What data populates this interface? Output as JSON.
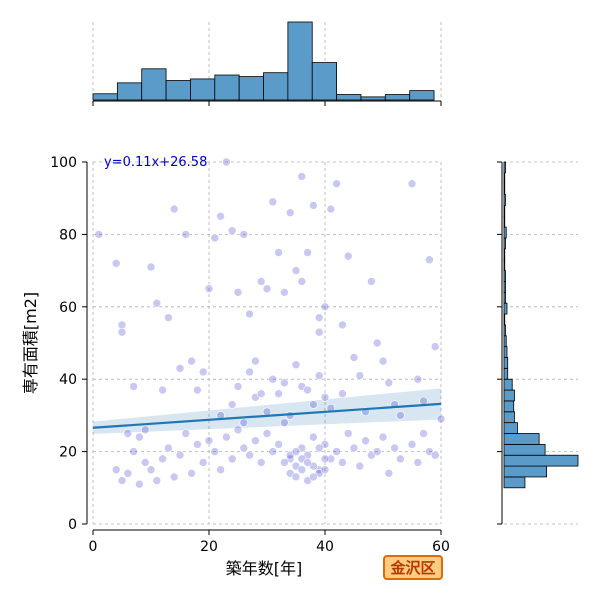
{
  "chart_data": {
    "type": "scatter",
    "xlabel": "築年数[年]",
    "ylabel": "専有面積[m2]",
    "xlim": [
      0,
      60
    ],
    "ylim": [
      0,
      100
    ],
    "xticks": [
      0,
      20,
      40,
      60
    ],
    "yticks": [
      0,
      20,
      40,
      60,
      80,
      100
    ],
    "grid": true,
    "regression": {
      "label": "y=0.11x+26.58",
      "slope": 0.11,
      "intercept": 26.58
    },
    "badge": "金沢区",
    "colors": {
      "points": "#3a3acc",
      "regression": "#1f77b4",
      "histogram": "#5a9bc9",
      "grid": "#b0b0b0",
      "equation": "#0000cc"
    },
    "top_histogram": {
      "bin_edges": [
        0,
        4.2,
        8.4,
        12.6,
        16.8,
        21,
        25.2,
        29.4,
        33.6,
        37.8,
        42,
        46.2,
        50.4,
        54.6,
        58.8
      ],
      "counts": [
        8,
        22,
        40,
        25,
        27,
        32,
        30,
        35,
        100,
        48,
        7,
        4,
        7,
        12
      ]
    },
    "right_histogram": {
      "bin_edges": [
        10,
        13,
        16,
        19,
        22,
        25,
        28,
        31,
        34,
        37,
        40,
        43,
        46,
        49,
        52,
        55,
        58,
        61,
        64,
        67,
        70,
        73,
        76,
        79,
        82,
        85,
        88,
        91,
        94,
        97,
        100
      ],
      "counts": [
        28,
        57,
        99,
        55,
        47,
        18,
        14,
        13,
        14,
        11,
        5,
        5,
        4,
        3,
        2,
        1,
        4,
        2,
        2,
        2,
        1,
        1,
        2,
        3,
        1,
        1,
        2,
        1,
        1,
        2
      ]
    },
    "points": [
      [
        1,
        80
      ],
      [
        4,
        72
      ],
      [
        5,
        55
      ],
      [
        5,
        53
      ],
      [
        6,
        25
      ],
      [
        7,
        38
      ],
      [
        8,
        24
      ],
      [
        9,
        26
      ],
      [
        10,
        71
      ],
      [
        11,
        61
      ],
      [
        12,
        37
      ],
      [
        13,
        57
      ],
      [
        14,
        87
      ],
      [
        15,
        43
      ],
      [
        16,
        80
      ],
      [
        17,
        45
      ],
      [
        18,
        37
      ],
      [
        19,
        42
      ],
      [
        20,
        65
      ],
      [
        21,
        79
      ],
      [
        22,
        85
      ],
      [
        23,
        100
      ],
      [
        24,
        81
      ],
      [
        25,
        64
      ],
      [
        26,
        80
      ],
      [
        27,
        58
      ],
      [
        28,
        45
      ],
      [
        29,
        67
      ],
      [
        30,
        65
      ],
      [
        31,
        89
      ],
      [
        32,
        75
      ],
      [
        33,
        64
      ],
      [
        34,
        86
      ],
      [
        35,
        70
      ],
      [
        36,
        96
      ],
      [
        37,
        75
      ],
      [
        38,
        88
      ],
      [
        39,
        57
      ],
      [
        40,
        60
      ],
      [
        41,
        87
      ],
      [
        42,
        94
      ],
      [
        43,
        55
      ],
      [
        44,
        74
      ],
      [
        45,
        46
      ],
      [
        46,
        41
      ],
      [
        47,
        31
      ],
      [
        48,
        67
      ],
      [
        49,
        50
      ],
      [
        50,
        45
      ],
      [
        51,
        39
      ],
      [
        52,
        33
      ],
      [
        53,
        30
      ],
      [
        55,
        94
      ],
      [
        56,
        40
      ],
      [
        57,
        34
      ],
      [
        58,
        73
      ],
      [
        59,
        49
      ],
      [
        60,
        29
      ],
      [
        36,
        67
      ],
      [
        39,
        53
      ],
      [
        4,
        15
      ],
      [
        5,
        12
      ],
      [
        6,
        14
      ],
      [
        7,
        20
      ],
      [
        8,
        11
      ],
      [
        9,
        17
      ],
      [
        10,
        15
      ],
      [
        11,
        12
      ],
      [
        12,
        18
      ],
      [
        13,
        21
      ],
      [
        14,
        13
      ],
      [
        15,
        19
      ],
      [
        16,
        25
      ],
      [
        17,
        14
      ],
      [
        18,
        22
      ],
      [
        19,
        17
      ],
      [
        20,
        23
      ],
      [
        21,
        20
      ],
      [
        22,
        15
      ],
      [
        23,
        24
      ],
      [
        24,
        18
      ],
      [
        25,
        26
      ],
      [
        26,
        21
      ],
      [
        27,
        19
      ],
      [
        28,
        23
      ],
      [
        29,
        17
      ],
      [
        30,
        25
      ],
      [
        31,
        20
      ],
      [
        32,
        22
      ],
      [
        33,
        28
      ],
      [
        34,
        18
      ],
      [
        35,
        16
      ],
      [
        36,
        21
      ],
      [
        37,
        19
      ],
      [
        38,
        24
      ],
      [
        39,
        15
      ],
      [
        40,
        22
      ],
      [
        41,
        18
      ],
      [
        42,
        20
      ],
      [
        43,
        17
      ],
      [
        44,
        25
      ],
      [
        45,
        21
      ],
      [
        46,
        16
      ],
      [
        47,
        23
      ],
      [
        48,
        19
      ],
      [
        49,
        20
      ],
      [
        50,
        24
      ],
      [
        51,
        14
      ],
      [
        52,
        21
      ],
      [
        53,
        18
      ],
      [
        55,
        22
      ],
      [
        56,
        17
      ],
      [
        57,
        25
      ],
      [
        58,
        20
      ],
      [
        59,
        19
      ],
      [
        34,
        14
      ],
      [
        35,
        13
      ],
      [
        36,
        15
      ],
      [
        37,
        12
      ],
      [
        38,
        16
      ],
      [
        39,
        14
      ],
      [
        40,
        18
      ],
      [
        33,
        17
      ],
      [
        34,
        19
      ],
      [
        36,
        18
      ],
      [
        38,
        13
      ],
      [
        40,
        15
      ],
      [
        35,
        20
      ],
      [
        37,
        17
      ],
      [
        39,
        21
      ],
      [
        22,
        30
      ],
      [
        24,
        33
      ],
      [
        26,
        28
      ],
      [
        28,
        35
      ],
      [
        30,
        31
      ],
      [
        32,
        36
      ],
      [
        34,
        30
      ],
      [
        36,
        38
      ],
      [
        38,
        33
      ],
      [
        40,
        35
      ],
      [
        25,
        38
      ],
      [
        27,
        42
      ],
      [
        29,
        36
      ],
      [
        31,
        40
      ],
      [
        33,
        39
      ],
      [
        35,
        44
      ],
      [
        37,
        37
      ],
      [
        39,
        41
      ],
      [
        41,
        32
      ],
      [
        43,
        36
      ]
    ]
  }
}
